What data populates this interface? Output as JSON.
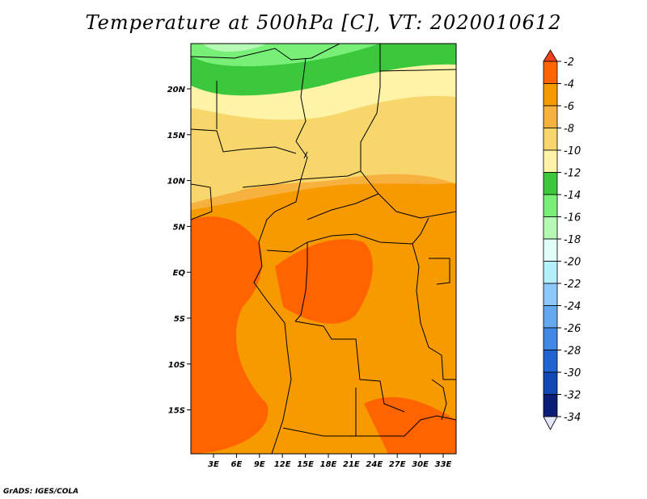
{
  "title": "Temperature at 500hPa [C], VT: 2020010612",
  "credit": "GrADS: IGES/COLA",
  "map": {
    "lon_labels": [
      "3E",
      "6E",
      "9E",
      "12E",
      "15E",
      "18E",
      "21E",
      "24E",
      "27E",
      "30E",
      "33E"
    ],
    "lat_labels": [
      "20N",
      "15N",
      "10N",
      "5N",
      "EQ",
      "5S",
      "10S",
      "15S"
    ],
    "boundaries": "country borders and coastlines",
    "field": "500hPa temperature shaded"
  },
  "colorbar": {
    "labels": [
      "-2",
      "-4",
      "-6",
      "-8",
      "-10",
      "-12",
      "-14",
      "-16",
      "-18",
      "-20",
      "-22",
      "-24",
      "-26",
      "-28",
      "-30",
      "-32",
      "-34"
    ],
    "colors": [
      "#f0401e",
      "#ff6400",
      "#f79a00",
      "#f7b13e",
      "#f7d76b",
      "#fff3a8",
      "#3cc83c",
      "#78f078",
      "#b4fab4",
      "#e1fff8",
      "#b4f0fa",
      "#8cc8fa",
      "#64a8f0",
      "#4088e6",
      "#2064d2",
      "#1048b4",
      "#0a1e78",
      "#e6e6fa"
    ]
  }
}
